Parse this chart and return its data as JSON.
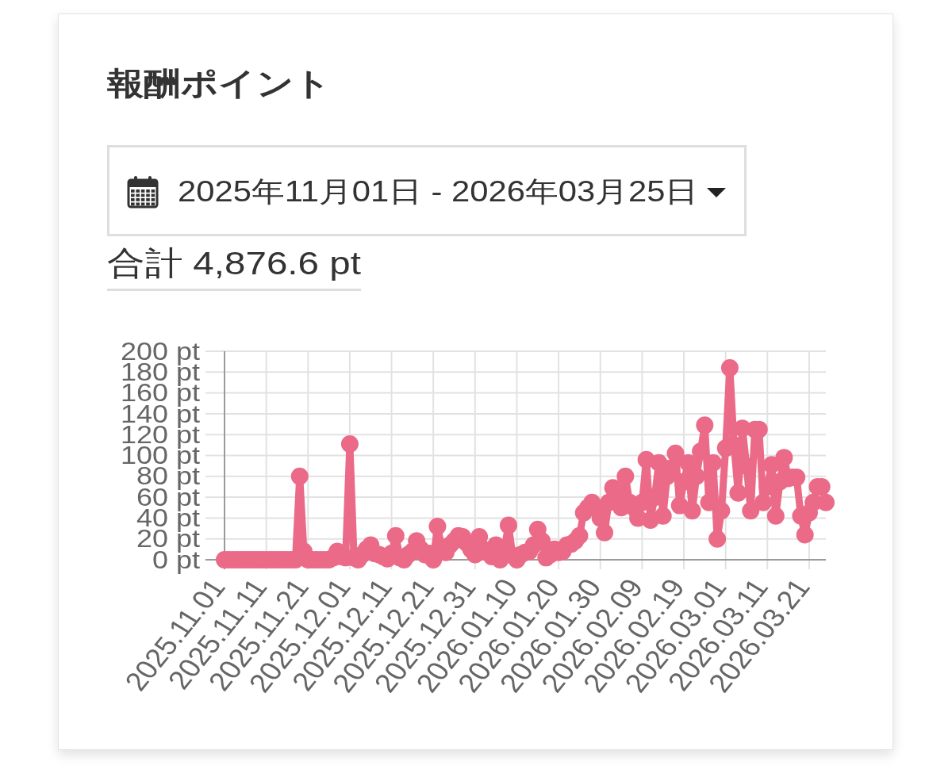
{
  "chart_data": {
    "type": "line",
    "title": "報酬ポイント",
    "subtitle": "2025年11月01日 - 2026年03月25日",
    "annotations": [
      "合計 4,876.6 pt"
    ],
    "x": [
      "2025-11-01",
      "2025-11-02",
      "2025-11-03",
      "2025-11-04",
      "2025-11-05",
      "2025-11-06",
      "2025-11-07",
      "2025-11-08",
      "2025-11-09",
      "2025-11-10",
      "2025-11-11",
      "2025-11-12",
      "2025-11-13",
      "2025-11-14",
      "2025-11-15",
      "2025-11-16",
      "2025-11-17",
      "2025-11-18",
      "2025-11-19",
      "2025-11-20",
      "2025-11-21",
      "2025-11-22",
      "2025-11-23",
      "2025-11-24",
      "2025-11-25",
      "2025-11-26",
      "2025-11-27",
      "2025-11-28",
      "2025-11-29",
      "2025-11-30",
      "2025-12-01",
      "2025-12-02",
      "2025-12-03",
      "2025-12-04",
      "2025-12-05",
      "2025-12-06",
      "2025-12-07",
      "2025-12-08",
      "2025-12-09",
      "2025-12-10",
      "2025-12-11",
      "2025-12-12",
      "2025-12-13",
      "2025-12-14",
      "2025-12-15",
      "2025-12-16",
      "2025-12-17",
      "2025-12-18",
      "2025-12-19",
      "2025-12-20",
      "2025-12-21",
      "2025-12-22",
      "2025-12-23",
      "2025-12-24",
      "2025-12-25",
      "2025-12-26",
      "2025-12-27",
      "2025-12-28",
      "2025-12-29",
      "2025-12-30",
      "2025-12-31",
      "2026-01-01",
      "2026-01-02",
      "2026-01-03",
      "2026-01-04",
      "2026-01-05",
      "2026-01-06",
      "2026-01-07",
      "2026-01-08",
      "2026-01-09",
      "2026-01-10",
      "2026-01-11",
      "2026-01-12",
      "2026-01-13",
      "2026-01-14",
      "2026-01-15",
      "2026-01-16",
      "2026-01-17",
      "2026-01-18",
      "2026-01-19",
      "2026-01-20",
      "2026-01-21",
      "2026-01-22",
      "2026-01-23",
      "2026-01-24",
      "2026-01-25",
      "2026-01-26",
      "2026-01-27",
      "2026-01-28",
      "2026-01-29",
      "2026-01-30",
      "2026-01-31",
      "2026-02-01",
      "2026-02-02",
      "2026-02-03",
      "2026-02-04",
      "2026-02-05",
      "2026-02-06",
      "2026-02-07",
      "2026-02-08",
      "2026-02-09",
      "2026-02-10",
      "2026-02-11",
      "2026-02-12",
      "2026-02-13",
      "2026-02-14",
      "2026-02-15",
      "2026-02-16",
      "2026-02-17",
      "2026-02-18",
      "2026-02-19",
      "2026-02-20",
      "2026-02-21",
      "2026-02-22",
      "2026-02-23",
      "2026-02-24",
      "2026-02-25",
      "2026-02-26",
      "2026-02-27",
      "2026-02-28",
      "2026-03-01",
      "2026-03-02",
      "2026-03-03",
      "2026-03-04",
      "2026-03-05",
      "2026-03-06",
      "2026-03-07",
      "2026-03-08",
      "2026-03-09",
      "2026-03-10",
      "2026-03-11",
      "2026-03-12",
      "2026-03-13",
      "2026-03-14",
      "2026-03-15",
      "2026-03-16",
      "2026-03-17",
      "2026-03-18",
      "2026-03-19",
      "2026-03-20",
      "2026-03-21",
      "2026-03-22",
      "2026-03-23",
      "2026-03-24",
      "2026-03-25"
    ],
    "series": [
      {
        "color": "#ea6a88",
        "values": [
          0,
          0,
          0,
          0,
          0,
          0,
          0,
          0,
          0,
          0,
          0,
          0,
          0,
          0,
          0,
          0,
          0,
          0,
          80,
          8,
          0,
          0,
          0,
          0,
          0,
          0,
          2,
          8,
          3,
          2,
          111,
          2,
          0,
          5,
          10,
          14,
          6,
          5,
          3,
          1,
          6,
          23,
          2,
          0,
          5,
          8,
          18,
          10,
          5,
          6,
          0,
          32,
          12,
          7,
          14,
          18,
          23,
          22,
          16,
          10,
          5,
          22,
          10,
          7,
          3,
          14,
          0,
          10,
          33,
          4,
          0,
          5,
          7,
          8,
          14,
          29,
          18,
          2,
          5,
          10,
          7,
          8,
          14,
          15,
          18,
          23,
          45,
          50,
          55,
          50,
          40,
          26,
          55,
          69,
          65,
          50,
          80,
          55,
          50,
          40,
          55,
          96,
          38,
          60,
          93,
          42,
          80,
          88,
          102,
          52,
          75,
          93,
          47,
          80,
          104,
          129,
          55,
          93,
          20,
          47,
          107,
          184,
          110,
          64,
          126,
          90,
          47,
          125,
          125,
          55,
          70,
          91,
          42,
          75,
          98,
          78,
          79,
          79,
          42,
          24,
          45,
          55,
          70,
          70,
          55
        ]
      }
    ],
    "xlim": [
      "2025-11-01",
      "2026-03-25"
    ],
    "xticks": [
      {
        "value": "2025-11-01",
        "label": "2025.11.01"
      },
      {
        "value": "2025-11-11",
        "label": "2025.11.11"
      },
      {
        "value": "2025-11-21",
        "label": "2025.11.21"
      },
      {
        "value": "2025-12-01",
        "label": "2025.12.01"
      },
      {
        "value": "2025-12-11",
        "label": "2025.12.11"
      },
      {
        "value": "2025-12-21",
        "label": "2025.12.21"
      },
      {
        "value": "2025-12-31",
        "label": "2025.12.31"
      },
      {
        "value": "2026-01-10",
        "label": "2026.01.10"
      },
      {
        "value": "2026-01-20",
        "label": "2026.01.20"
      },
      {
        "value": "2026-01-30",
        "label": "2026.01.30"
      },
      {
        "value": "2026-02-09",
        "label": "2026.02.09"
      },
      {
        "value": "2026-02-19",
        "label": "2026.02.19"
      },
      {
        "value": "2026-03-01",
        "label": "2026.03.01"
      },
      {
        "value": "2026-03-11",
        "label": "2026.03.11"
      },
      {
        "value": "2026-03-21",
        "label": "2026.03.21"
      }
    ],
    "ylim": [
      0,
      200
    ],
    "yticks": [
      {
        "value": 0,
        "label": "0 pt"
      },
      {
        "value": 20,
        "label": "20 pt"
      },
      {
        "value": 40,
        "label": "40 pt"
      },
      {
        "value": 60,
        "label": "60 pt"
      },
      {
        "value": 80,
        "label": "80 pt"
      },
      {
        "value": 100,
        "label": "100 pt"
      },
      {
        "value": 120,
        "label": "120 pt"
      },
      {
        "value": 140,
        "label": "140 pt"
      },
      {
        "value": 160,
        "label": "160 pt"
      },
      {
        "value": 180,
        "label": "180 pt"
      },
      {
        "value": 200,
        "label": "200 pt"
      }
    ],
    "grid": true,
    "marker": "circle",
    "line_style": "solid"
  }
}
